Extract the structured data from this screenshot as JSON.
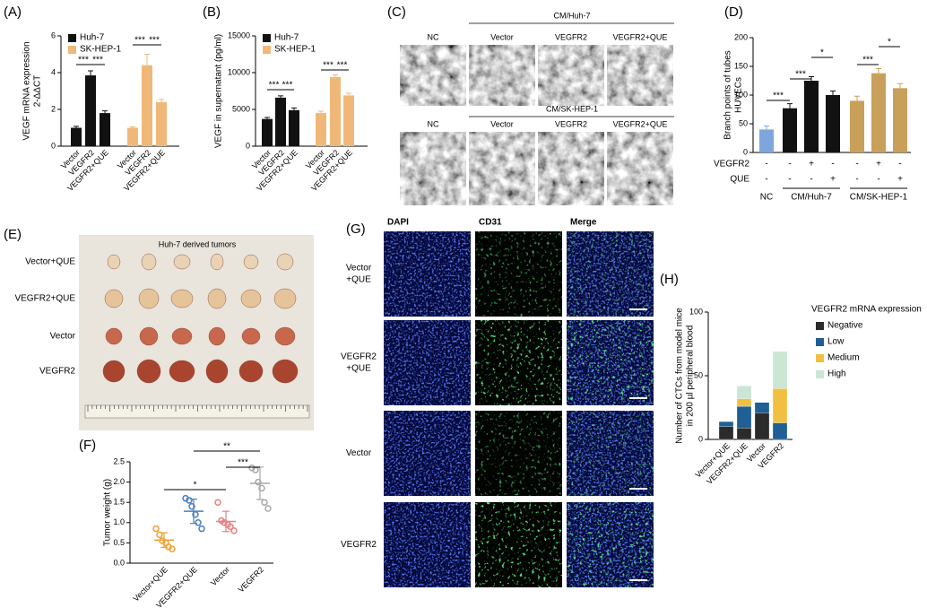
{
  "chart_data": [
    {
      "panel": "(A)",
      "type": "bar",
      "ylabel": "VEGF mRNA expression",
      "ylabel_unit": "2-ΔΔCT",
      "categories": [
        "Vector",
        "VEGFR2",
        "VEGFR2+QUE",
        "Vector",
        "VEGFR2",
        "VEGFR2+QUE"
      ],
      "series": [
        {
          "name": "Huh-7",
          "color": "#111111",
          "values": [
            1.0,
            3.85,
            1.8,
            null,
            null,
            null
          ],
          "errors": [
            0.08,
            0.25,
            0.12,
            null,
            null,
            null
          ]
        },
        {
          "name": "SK-HEP-1",
          "color": "#f0b878",
          "values": [
            null,
            null,
            null,
            1.0,
            4.4,
            2.4
          ],
          "errors": [
            null,
            null,
            null,
            0.05,
            0.6,
            0.15
          ]
        }
      ],
      "ylim": [
        0,
        6
      ],
      "yticks": [
        0,
        2,
        4,
        6
      ],
      "legend": "upper left",
      "annotations": [
        "***",
        "***",
        "***",
        "***"
      ]
    },
    {
      "panel": "(B)",
      "type": "bar",
      "ylabel": "VEGF in supernatant (pg/ml)",
      "categories": [
        "Vector",
        "VEGFR2",
        "VEGFR2+QUE",
        "Vector",
        "VEGFR2",
        "VEGFR2+QUE"
      ],
      "series": [
        {
          "name": "Huh-7",
          "color": "#111111",
          "values": [
            3700,
            6600,
            4900,
            null,
            null,
            null
          ],
          "errors": [
            200,
            250,
            300,
            null,
            null,
            null
          ]
        },
        {
          "name": "SK-HEP-1",
          "color": "#f0b878",
          "values": [
            null,
            null,
            null,
            4500,
            9400,
            6900
          ],
          "errors": [
            null,
            null,
            null,
            250,
            300,
            300
          ]
        }
      ],
      "ylim": [
        0,
        15000
      ],
      "yticks": [
        0,
        5000,
        10000,
        15000
      ],
      "legend": "upper left",
      "annotations": [
        "***",
        "***",
        "***",
        "***"
      ]
    },
    {
      "panel": "(D)",
      "type": "bar",
      "ylabel": "Branch points of tubes",
      "ylabel_unit": "HUVECs",
      "series": [
        {
          "color": "#7fa6dc",
          "values": [
            40,
            null,
            null,
            null,
            null,
            null,
            null
          ],
          "errors": [
            6,
            null,
            null,
            null,
            null,
            null,
            null
          ]
        },
        {
          "color": "#111111",
          "values": [
            null,
            77,
            125,
            100,
            null,
            null,
            null
          ],
          "errors": [
            null,
            8,
            7,
            7,
            null,
            null,
            null
          ]
        },
        {
          "color": "#c9a05a",
          "values": [
            null,
            null,
            null,
            null,
            90,
            138,
            112
          ],
          "errors": [
            null,
            null,
            null,
            null,
            8,
            8,
            8
          ]
        }
      ],
      "rows": [
        {
          "label": "VEGFR2",
          "values": [
            "-",
            "-",
            "+",
            "-",
            "-",
            "+",
            "-"
          ]
        },
        {
          "label": "QUE",
          "values": [
            "-",
            "-",
            "-",
            "+",
            "-",
            "-",
            "+"
          ]
        }
      ],
      "groups": [
        "NC",
        "CM/Huh-7",
        "CM/SK-HEP-1"
      ],
      "ylim": [
        0,
        200
      ],
      "yticks": [
        0,
        50,
        100,
        150,
        200
      ],
      "annotations": [
        "***",
        "***",
        "*",
        "***",
        "*"
      ]
    },
    {
      "panel": "(F)",
      "type": "scatter",
      "ylabel": "Tumor weight (g)",
      "categories": [
        "Vector+QUE",
        "VEGFR2+QUE",
        "Vector",
        "VEGFR2"
      ],
      "colors": [
        "#f0a030",
        "#4a7fc0",
        "#e88080",
        "#a8a8a8"
      ],
      "points": [
        [
          0.85,
          0.7,
          0.55,
          0.5,
          0.4,
          0.35
        ],
        [
          1.6,
          1.55,
          1.4,
          1.2,
          1.0,
          0.85
        ],
        [
          1.5,
          1.05,
          1.0,
          0.95,
          0.9,
          0.8
        ],
        [
          2.35,
          2.3,
          2.0,
          1.85,
          1.5,
          1.35
        ]
      ],
      "means": [
        0.57,
        1.28,
        1.03,
        1.97
      ],
      "sds": [
        0.18,
        0.3,
        0.25,
        0.4
      ],
      "ylim": [
        0,
        2.5
      ],
      "yticks": [
        {
          "value": 0,
          "label": "0.0"
        },
        0.5,
        {
          "value": 1,
          "label": "1.0"
        },
        1.5,
        {
          "value": 2,
          "label": "2.0"
        },
        2.5
      ],
      "annotations": [
        "*",
        "**",
        "***"
      ]
    },
    {
      "panel": "(H)",
      "type": "stacked_bar",
      "ylabel": "Number of CTCs from model mice",
      "ylabel_unit": "in 200 µl peripheral blood",
      "legend_title": "VEGFR2 mRNA expression",
      "categories": [
        "Vector+QUE",
        "VEGFR2+QUE",
        "Vector",
        "VEGFR2"
      ],
      "series": [
        {
          "name": "Negative",
          "color": "#2b2b2b",
          "values": [
            10,
            9,
            21,
            0
          ]
        },
        {
          "name": "Low",
          "color": "#1f5f96",
          "values": [
            4,
            17,
            8,
            13
          ]
        },
        {
          "name": "Medium",
          "color": "#f2c040",
          "values": [
            0,
            6,
            0,
            27
          ]
        },
        {
          "name": "High",
          "color": "#cbe6d4",
          "values": [
            0,
            10,
            0,
            29
          ]
        }
      ],
      "ylim": [
        0,
        100
      ],
      "yticks": [
        0,
        50,
        100
      ],
      "legend": "right"
    }
  ],
  "panel_c": {
    "label": "(C)",
    "columns": [
      "NC",
      "Vector",
      "VEGFR2",
      "VEGFR2+QUE"
    ],
    "groups": [
      "CM/Huh-7",
      "CM/SK-HEP-1"
    ]
  },
  "panel_e": {
    "label": "(E)",
    "title": "Huh-7 derived tumors",
    "rows": [
      "Vector+QUE",
      "VEGFR2+QUE",
      "Vector",
      "VEGFR2"
    ]
  },
  "panel_g": {
    "label": "(G)",
    "columns": [
      "DAPI",
      "CD31",
      "Merge"
    ],
    "rows": [
      [
        "Vector",
        "+QUE"
      ],
      [
        "VEGFR2",
        "+QUE"
      ],
      [
        "Vector"
      ],
      [
        "VEGFR2"
      ]
    ]
  }
}
